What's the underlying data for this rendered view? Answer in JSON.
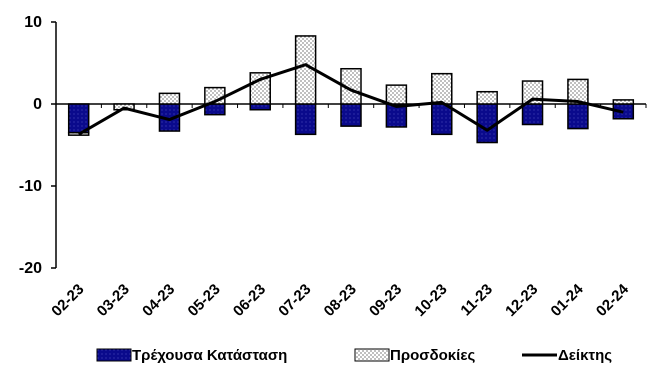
{
  "chart_data": {
    "type": "bar",
    "categories": [
      "02-23",
      "03-23",
      "04-23",
      "05-23",
      "06-23",
      "07-23",
      "08-23",
      "09-23",
      "10-23",
      "11-23",
      "12-23",
      "01-24",
      "02-24"
    ],
    "series": [
      {
        "name": "Τρέχουσα Κατάσταση",
        "kind": "bar",
        "color": "#0a0a8c",
        "values": [
          -3.5,
          0.0,
          -3.3,
          -1.3,
          -0.7,
          -3.7,
          -2.7,
          -2.8,
          -3.7,
          -4.7,
          -2.5,
          -3.0,
          -1.8
        ]
      },
      {
        "name": "Προσδοκίες",
        "kind": "bar",
        "color": "#ffffff",
        "values": [
          -0.3,
          -0.7,
          1.3,
          2.0,
          3.8,
          8.3,
          4.3,
          2.3,
          3.7,
          1.5,
          2.8,
          3.0,
          0.5
        ]
      },
      {
        "name": "Δείκτης",
        "kind": "line",
        "color": "#000000",
        "values": [
          -3.7,
          -0.5,
          -1.9,
          0.3,
          3.0,
          4.8,
          1.7,
          -0.3,
          0.2,
          -3.2,
          0.6,
          0.3,
          -1.0
        ]
      }
    ],
    "yticks": [
      "10",
      "0",
      "-10",
      "-20"
    ],
    "ylim": [
      -20,
      10
    ],
    "stacked": true,
    "legend": {
      "placement": "bottom"
    },
    "grid": false
  }
}
